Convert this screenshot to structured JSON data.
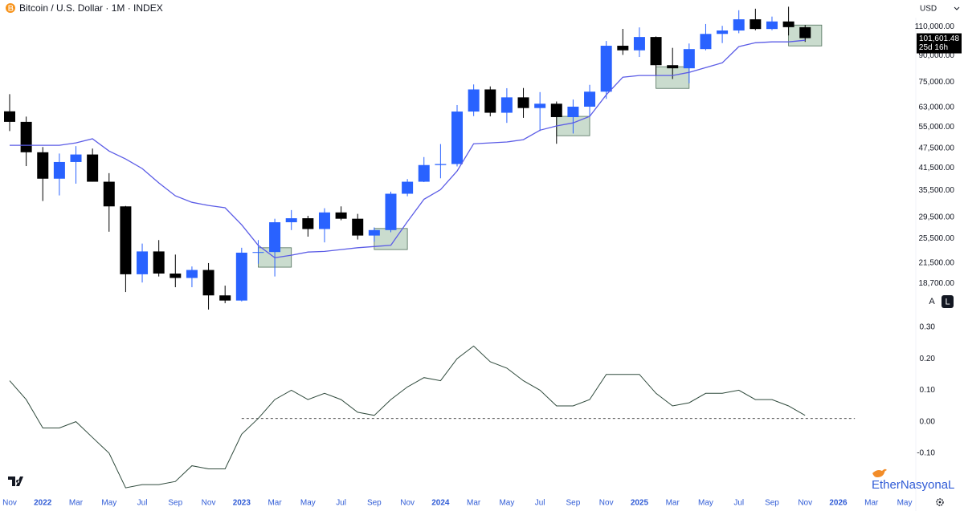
{
  "chart_data": {
    "type": "candlestick",
    "title": "Bitcoin / U.S. Dollar · 1M · INDEX",
    "log": true,
    "grid": false,
    "categories": [
      "Nov",
      null,
      "2022",
      null,
      "Mar",
      null,
      "May",
      null,
      "Jul",
      null,
      "Sep",
      null,
      "Nov",
      null,
      "2023",
      null,
      "Mar",
      null,
      "May",
      null,
      "Jul",
      null,
      "Sep",
      null,
      "Nov",
      null,
      "2024",
      null,
      "Mar",
      null,
      "May",
      null,
      "Jul",
      null,
      "Sep",
      null,
      "Nov",
      null,
      "2025",
      null,
      "Mar",
      null,
      "May",
      null,
      "Jul",
      null,
      "Sep",
      null,
      "Nov",
      null,
      "2026",
      null,
      "Mar",
      null,
      "May"
    ],
    "open": [
      61300,
      57000,
      46200,
      38500,
      43200,
      45500,
      37700,
      31800,
      19900,
      23300,
      20000,
      19400,
      20500,
      17200,
      16600,
      23100,
      23200,
      28500,
      29300,
      27200,
      30500,
      29200,
      26000,
      27000,
      34700,
      37700,
      42300,
      42600,
      61200,
      71300,
      60700,
      67500,
      62700,
      64600,
      58900,
      63300,
      70200,
      96400,
      93400,
      102400,
      84300,
      82500,
      94200,
      104600,
      107100,
      115700,
      108200,
      114000,
      109600,
      null,
      null,
      null,
      null,
      null,
      null
    ],
    "high": [
      69000,
      59100,
      47900,
      45800,
      48200,
      47400,
      40000,
      31900,
      24600,
      25200,
      22800,
      21000,
      21500,
      18400,
      23900,
      25200,
      29200,
      31000,
      29800,
      31400,
      31800,
      30200,
      27500,
      35200,
      38400,
      44700,
      48900,
      64000,
      73800,
      72800,
      71900,
      72000,
      70000,
      65600,
      66500,
      73600,
      99600,
      108300,
      109400,
      102800,
      95000,
      97900,
      112000,
      110600,
      123200,
      124500,
      117900,
      126200,
      111200,
      null,
      null,
      null,
      null,
      null,
      null
    ],
    "low": [
      53500,
      42000,
      33000,
      34300,
      37200,
      37700,
      26700,
      17600,
      18800,
      19600,
      18200,
      18200,
      15600,
      16300,
      16500,
      21400,
      19600,
      27000,
      25800,
      24800,
      28900,
      25300,
      24900,
      26600,
      34100,
      37600,
      38600,
      41900,
      59300,
      59200,
      56600,
      58600,
      53500,
      49000,
      52600,
      58900,
      66800,
      90500,
      89200,
      78200,
      76600,
      74400,
      93400,
      98200,
      105100,
      107300,
      107300,
      103500,
      99000,
      null,
      null,
      null,
      null,
      null,
      null
    ],
    "close": [
      57000,
      46200,
      38500,
      43200,
      45500,
      37700,
      31800,
      19900,
      23300,
      20000,
      19400,
      20500,
      17200,
      16600,
      23100,
      23200,
      28500,
      29300,
      27200,
      30500,
      29200,
      26000,
      27000,
      34700,
      37700,
      42300,
      42600,
      61200,
      71300,
      60700,
      67500,
      62700,
      64600,
      58900,
      63300,
      70200,
      96400,
      93400,
      102400,
      84300,
      82500,
      94200,
      104600,
      107100,
      115700,
      108200,
      114000,
      109600,
      101601.48,
      null,
      null,
      null,
      null,
      null,
      null
    ],
    "up_color": "#2962ff",
    "down_color": "#000000",
    "ma": {
      "color": "#5b5ce6",
      "values": [
        48500,
        48500,
        48500,
        48500,
        49300,
        50700,
        46600,
        44100,
        41300,
        37400,
        34200,
        32700,
        32000,
        31500,
        28000,
        24300,
        22300,
        22700,
        23200,
        23300,
        23600,
        23900,
        24100,
        24300,
        28600,
        33400,
        35700,
        40600,
        49000,
        49300,
        49600,
        50400,
        53800,
        55400,
        56600,
        59200,
        68700,
        77600,
        78500,
        78500,
        78500,
        80200,
        82900,
        85700,
        95800,
        98400,
        99000,
        99000,
        100100,
        null,
        null,
        null,
        null,
        null,
        null
      ]
    },
    "zones": [
      {
        "x": [
          15,
          17
        ],
        "y": [
          20900,
          23900
        ]
      },
      {
        "x": [
          22,
          24
        ],
        "y": [
          23600,
          27300
        ]
      },
      {
        "x": [
          33,
          35
        ],
        "y": [
          51800,
          59200
        ]
      },
      {
        "x": [
          39,
          41
        ],
        "y": [
          71800,
          83400
        ]
      },
      {
        "x": [
          47,
          49
        ],
        "y": [
          96300,
          111200
        ]
      }
    ],
    "zone_color": "#9fbfa6",
    "zone_border": "#4f6f5a",
    "ylim": [
      14830,
      132200
    ],
    "yticks": [
      {
        "value": 110000,
        "label": "110,000.00"
      },
      {
        "value": 90000,
        "label": "90,000.00"
      },
      {
        "value": 75000,
        "label": "75,000.00"
      },
      {
        "value": 63000,
        "label": "63,000.00"
      },
      {
        "value": 55000,
        "label": "55,000.00"
      },
      {
        "value": 47500,
        "label": "47,500.00"
      },
      {
        "value": 41500,
        "label": "41,500.00"
      },
      {
        "value": 35500,
        "label": "35,500.00"
      },
      {
        "value": 29500,
        "label": "29,500.00"
      },
      {
        "value": 25500,
        "label": "25,500.00"
      },
      {
        "value": 21500,
        "label": "21,500.00"
      },
      {
        "value": 18700,
        "label": "18,700.00"
      }
    ],
    "last_price": {
      "value": 101601.48,
      "label": "101,601.48",
      "countdown": "25d 16h"
    },
    "currency": "USD",
    "scale_buttons": [
      "A",
      "L"
    ],
    "indicator": {
      "type": "line",
      "color": "#2f4a3c",
      "values": [
        0.13,
        0.07,
        -0.02,
        -0.02,
        0,
        -0.05,
        -0.1,
        -0.21,
        -0.2,
        -0.2,
        -0.19,
        -0.14,
        -0.15,
        -0.15,
        -0.04,
        0.01,
        0.07,
        0.1,
        0.07,
        0.09,
        0.07,
        0.03,
        0.02,
        0.07,
        0.11,
        0.14,
        0.13,
        0.2,
        0.24,
        0.19,
        0.17,
        0.13,
        0.1,
        0.05,
        0.05,
        0.07,
        0.15,
        0.15,
        0.15,
        0.09,
        0.05,
        0.06,
        0.09,
        0.09,
        0.1,
        0.07,
        0.07,
        0.05,
        0.02,
        null,
        null,
        null,
        null,
        null,
        null
      ],
      "reference_line": {
        "value": 0.01,
        "x": [
          14,
          51
        ]
      },
      "ylim": [
        -0.22,
        0.32
      ],
      "yticks": [
        {
          "value": 0.3,
          "label": "0.30"
        },
        {
          "value": 0.2,
          "label": "0.20"
        },
        {
          "value": 0.1,
          "label": "0.10"
        },
        {
          "value": 0,
          "label": "0.00"
        },
        {
          "value": -0.1,
          "label": "-0.10"
        }
      ]
    }
  },
  "watermark": "EtherNasyonaL"
}
